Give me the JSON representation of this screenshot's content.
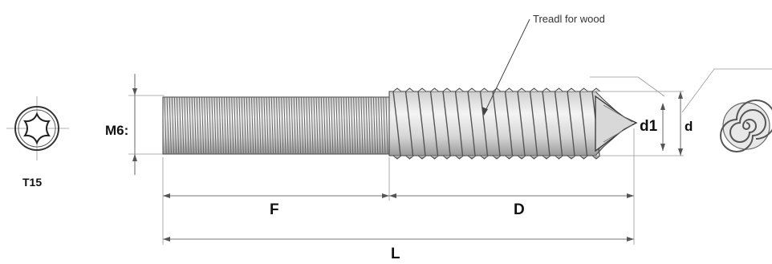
{
  "drive": {
    "label": "T15"
  },
  "screw": {
    "callout": "Treadl for wood",
    "thread_label": "M6:",
    "dimensions": {
      "machine_section": "F",
      "wood_section": "D",
      "total_length": "L",
      "core_diameter": "d1",
      "outer_diameter": "d"
    }
  }
}
